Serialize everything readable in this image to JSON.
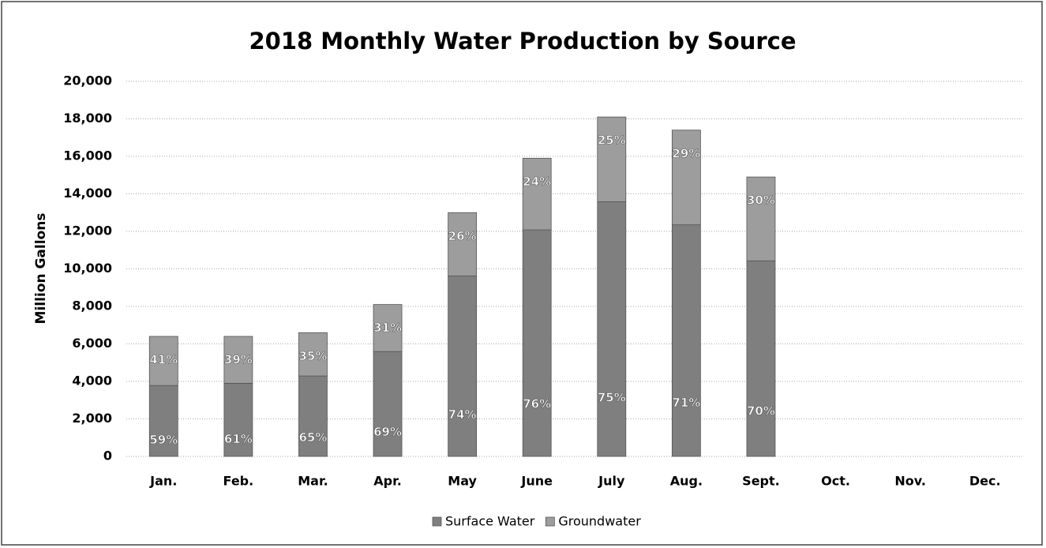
{
  "chart_data": {
    "type": "stacked_bar",
    "title": "2018 Monthly Water Production by Source",
    "y_label": "Million Gallons",
    "categories": [
      "Jan.",
      "Feb.",
      "Mar.",
      "Apr.",
      "May",
      "June",
      "July",
      "Aug.",
      "Sept.",
      "Oct.",
      "Nov.",
      "Dec."
    ],
    "series": [
      {
        "name": "Surface Water",
        "color": "#7f7f7f",
        "values": [
          3780,
          3900,
          4290,
          5590,
          9620,
          12080,
          13580,
          12350,
          10430,
          null,
          null,
          null
        ],
        "value_labels": [
          "59%",
          "61%",
          "65%",
          "69%",
          "74%",
          "76%",
          "75%",
          "71%",
          "70%",
          null,
          null,
          null
        ]
      },
      {
        "name": "Groundwater",
        "color": "#9d9d9d",
        "values": [
          2620,
          2500,
          2310,
          2510,
          3380,
          3820,
          4520,
          5050,
          4470,
          null,
          null,
          null
        ],
        "value_labels": [
          "41%",
          "39%",
          "35%",
          "31%",
          "26%",
          "24%",
          "25%",
          "29%",
          "30%",
          null,
          null,
          null
        ]
      }
    ],
    "ylim": [
      0,
      20000
    ],
    "yticks": [
      0,
      {
        "value": 2000,
        "label": "2,000"
      },
      {
        "value": 4000,
        "label": "4,000"
      },
      {
        "value": 6000,
        "label": "6,000"
      },
      {
        "value": 8000,
        "label": "8,000"
      },
      {
        "value": 10000,
        "label": "10,000"
      },
      {
        "value": 12000,
        "label": "12,000"
      },
      {
        "value": 14000,
        "label": "14,000"
      },
      {
        "value": 16000,
        "label": "16,000"
      },
      {
        "value": 18000,
        "label": "18,000"
      },
      {
        "value": 20000,
        "label": "20,000"
      }
    ],
    "grid": true,
    "legend": "bottom"
  }
}
